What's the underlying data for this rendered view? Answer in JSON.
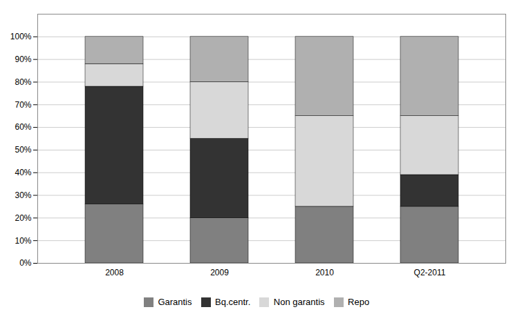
{
  "chart_data": {
    "type": "bar",
    "stacked": true,
    "categories": [
      "2008",
      "2009",
      "2010",
      "Q2-2011"
    ],
    "series": [
      {
        "name": "Garantis",
        "color": "#808080",
        "values": [
          26,
          20,
          25,
          25
        ]
      },
      {
        "name": "Bq.centr.",
        "color": "#333333",
        "values": [
          52,
          35,
          0,
          14
        ]
      },
      {
        "name": "Non garantis",
        "color": "#d8d8d8",
        "values": [
          10,
          25,
          40,
          26
        ]
      },
      {
        "name": "Repo",
        "color": "#b0b0b0",
        "values": [
          12,
          20,
          35,
          35
        ]
      }
    ],
    "ylim": [
      0,
      110
    ],
    "yticks": [
      {
        "value": 0,
        "label": "0%"
      },
      {
        "value": 10,
        "label": "10%"
      },
      {
        "value": 20,
        "label": "20%"
      },
      {
        "value": 30,
        "label": "30%"
      },
      {
        "value": 40,
        "label": "40%"
      },
      {
        "value": 50,
        "label": "50%"
      },
      {
        "value": 60,
        "label": "60%"
      },
      {
        "value": 70,
        "label": "70%"
      },
      {
        "value": 80,
        "label": "80%"
      },
      {
        "value": 90,
        "label": "90%"
      },
      {
        "value": 100,
        "label": "100%"
      }
    ],
    "grid": true,
    "legend": "bottom"
  }
}
